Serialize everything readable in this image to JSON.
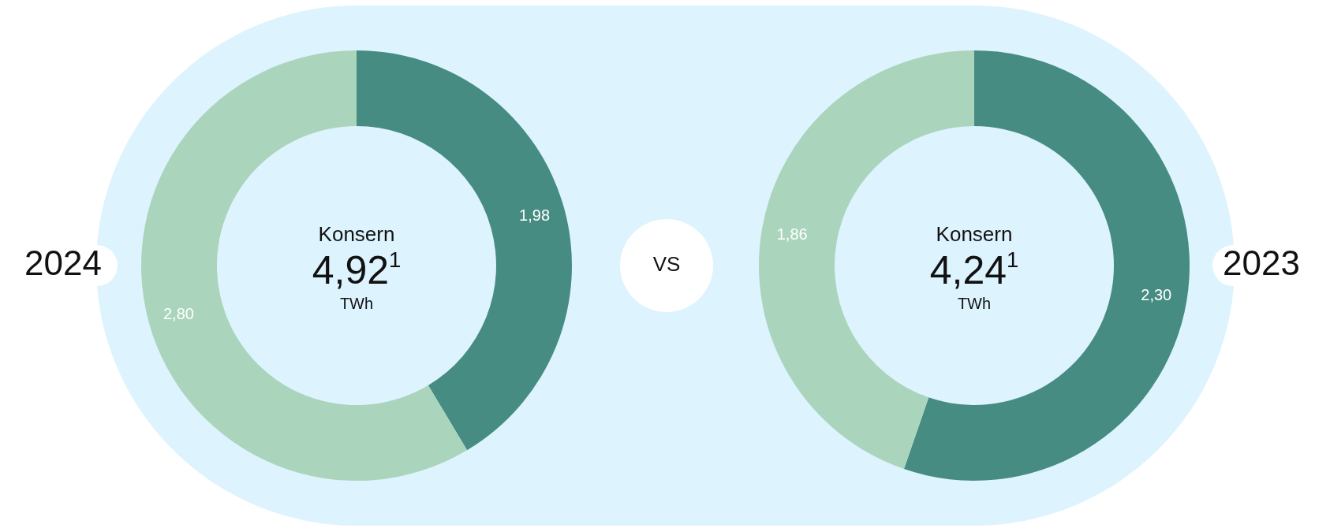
{
  "chart_data": [
    {
      "type": "donut",
      "title": "2024",
      "categories": [
        null,
        null
      ],
      "values": [
        1.98,
        2.8
      ],
      "colors": [
        "#468c82",
        "#aad5bc"
      ],
      "value_labels": [
        "1,98",
        "2,80"
      ],
      "annotations": [
        "Konsern",
        "4,92$^{1}$",
        "TWh",
        "VS"
      ]
    },
    {
      "type": "donut",
      "title": "2023",
      "categories": [
        null,
        null
      ],
      "values": [
        2.3,
        1.86
      ],
      "colors": [
        "#468c82",
        "#aad5bc"
      ],
      "value_labels": [
        "2,30",
        "1,86"
      ],
      "annotations": [
        "Konsern",
        "4,24$^{1}$",
        "TWh"
      ]
    }
  ]
}
